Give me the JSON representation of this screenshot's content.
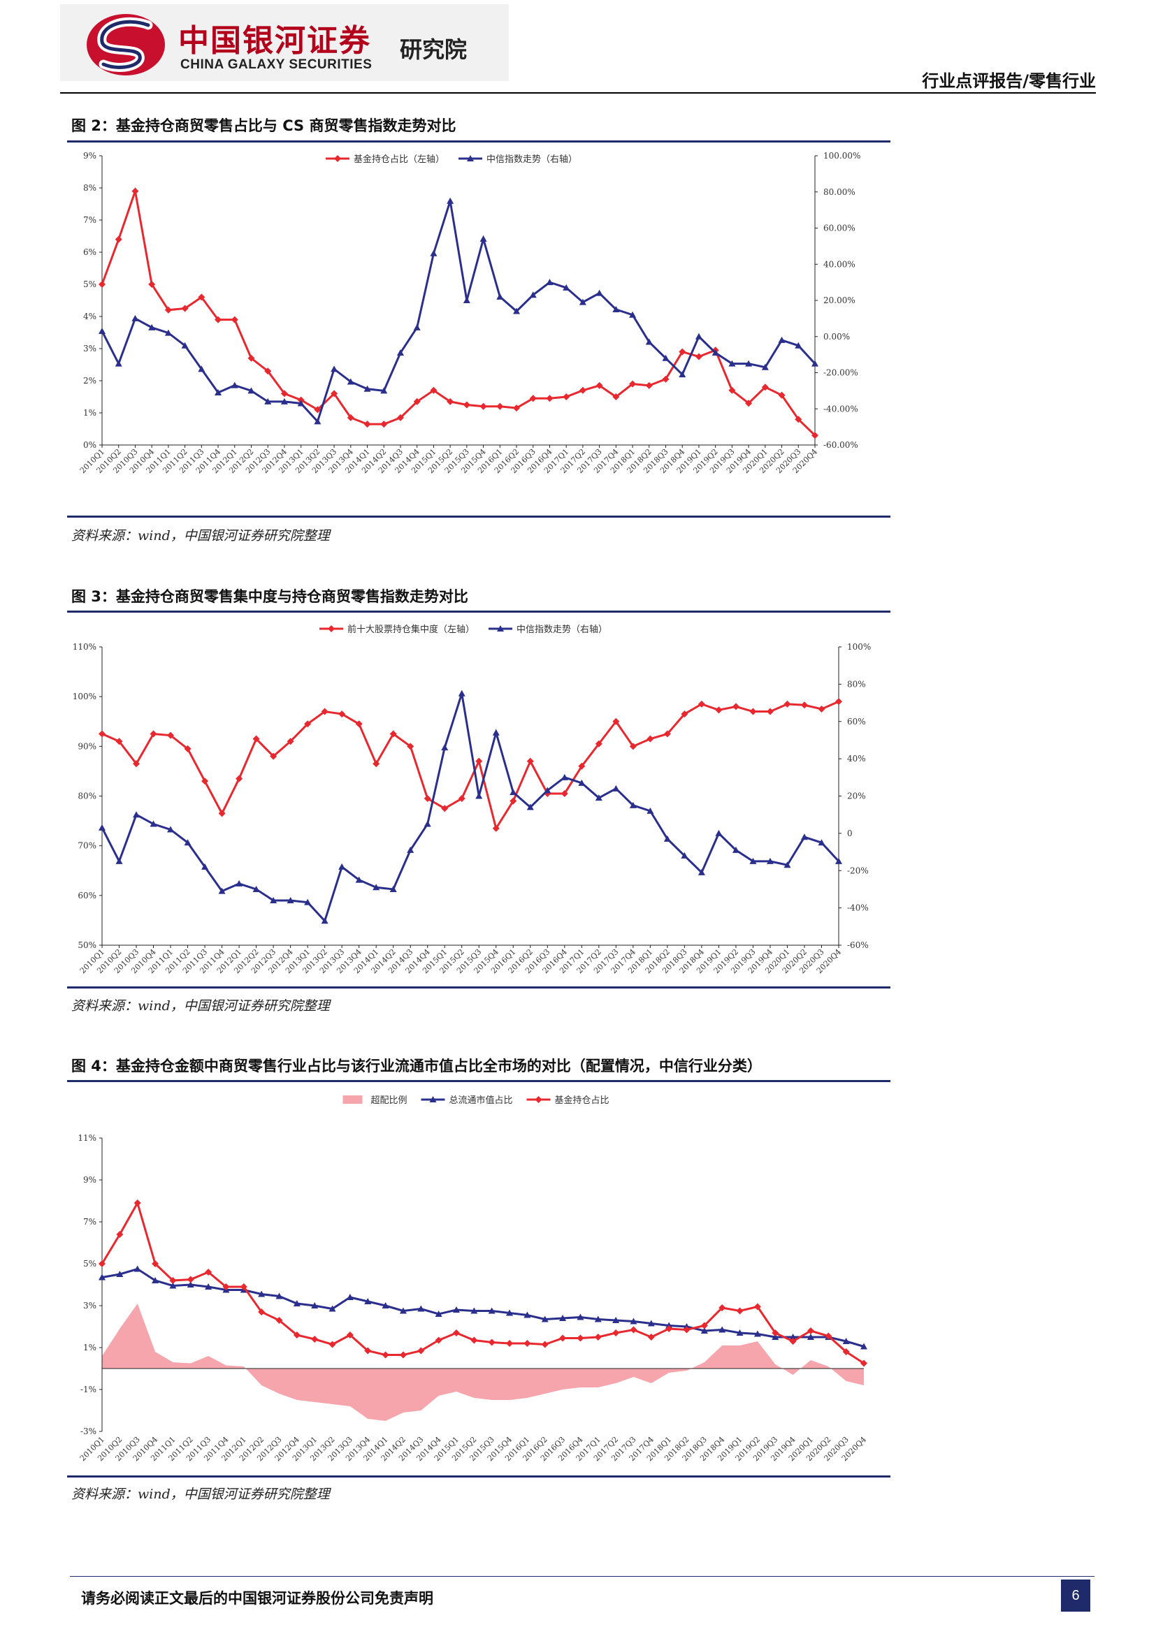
{
  "header": {
    "logo_cn": "中国银河证券",
    "logo_en": "CHINA GALAXY SECURITIES",
    "logo_institute": "研究院",
    "report_type": "行业点评报告/零售行业"
  },
  "figures": [
    {
      "title": "图 2：基金持仓商贸零售占比与 CS 商贸零售指数走势对比",
      "source": "资料来源：wind，中国银河证券研究院整理"
    },
    {
      "title": "图 3：基金持仓商贸零售集中度与持仓商贸零售指数走势对比",
      "source": "资料来源：wind，中国银河证券研究院整理"
    },
    {
      "title": "图 4：基金持仓金额中商贸零售行业占比与该行业流通市值占比全市场的对比（配置情况，中信行业分类）",
      "source": "资料来源：wind，中国银河证券研究院整理"
    }
  ],
  "footer": {
    "disclaimer": "请务必阅读正文最后的中国银河证券股份公司免责声明",
    "page": "6"
  },
  "colors": {
    "red": "#e8282e",
    "blue": "#2a2e8c",
    "pink": "#f7a5ad",
    "rule": "#1f2a6b"
  },
  "chart_data": [
    {
      "type": "line",
      "categories": [
        "2010Q1",
        "2010Q2",
        "2010Q3",
        "2010Q4",
        "2011Q1",
        "2011Q2",
        "2011Q3",
        "2011Q4",
        "2012Q1",
        "2012Q2",
        "2012Q3",
        "2012Q4",
        "2013Q1",
        "2013Q2",
        "2013Q3",
        "2013Q4",
        "2014Q1",
        "2014Q2",
        "2014Q3",
        "2014Q4",
        "2015Q1",
        "2015Q2",
        "2015Q3",
        "2015Q4",
        "2016Q1",
        "2016Q2",
        "2016Q3",
        "2016Q4",
        "2017Q1",
        "2017Q2",
        "2017Q3",
        "2017Q4",
        "2018Q1",
        "2018Q2",
        "2018Q3",
        "2018Q4",
        "2019Q1",
        "2019Q2",
        "2019Q3",
        "2019Q4",
        "2020Q1",
        "2020Q2",
        "2020Q3",
        "2020Q4"
      ],
      "tick_labels": [
        "2010Q1",
        "2010Q2",
        "2010Q3",
        "2010Q4",
        "2011Q1",
        "2011Q2",
        "2011Q3",
        "2011Q4",
        "2012Q1",
        "2012Q2",
        "2012Q3",
        "2012Q4",
        "2013Q1",
        "2013Q2",
        "2013Q3",
        "2013Q4",
        "2014Q1",
        "2014Q2",
        "2014Q3",
        "2014Q4",
        "2015Q1",
        "2015Q2",
        "2015Q3",
        "2015Q4",
        "2016Q1",
        "2016Q2",
        "2016Q3",
        "2016Q4",
        "2017Q1",
        "2017Q2",
        "2017Q3",
        "2017Q4",
        "2018Q1",
        "2018Q2",
        "2018Q3",
        "2018Q4",
        "2019Q1",
        "2019Q2",
        "2019Q3",
        "2019Q4",
        "2020Q1",
        "2020Q2",
        "2020Q3",
        "2020Q4"
      ],
      "left_axis": {
        "range": [
          0,
          9
        ],
        "ticks": [
          "0%",
          "1%",
          "2%",
          "3%",
          "4%",
          "5%",
          "6%",
          "7%",
          "8%",
          "9%"
        ]
      },
      "right_axis": {
        "range": [
          -60,
          100
        ],
        "ticks": [
          "-60.00%",
          "-40.00%",
          "-20.00%",
          "0.00%",
          "20.00%",
          "40.00%",
          "60.00%",
          "80.00%",
          "100.00%"
        ]
      },
      "series": [
        {
          "name": "基金持仓占比（左轴）",
          "axis": "left",
          "color": "#e8282e",
          "marker": "diamond",
          "values": [
            5.0,
            6.4,
            7.9,
            5.0,
            4.2,
            4.25,
            4.6,
            3.9,
            3.9,
            2.7,
            2.3,
            1.6,
            1.4,
            1.1,
            1.6,
            0.85,
            0.65,
            0.65,
            0.85,
            1.35,
            1.7,
            1.35,
            1.25,
            1.2,
            1.2,
            1.15,
            1.45,
            1.45,
            1.5,
            1.7,
            1.85,
            1.5,
            1.9,
            1.85,
            2.05,
            2.9,
            2.75,
            2.95,
            1.7,
            1.3,
            1.8,
            1.55,
            0.8,
            0.3
          ]
        },
        {
          "name": "中信指数走势（右轴）",
          "axis": "right",
          "color": "#2a2e8c",
          "marker": "triangle",
          "values": [
            3,
            -15,
            10,
            5,
            2,
            -5,
            -18,
            -31,
            -27,
            -30,
            -36,
            -36,
            -37,
            -47,
            -18,
            -25,
            -29,
            -30,
            -9,
            5,
            46,
            75,
            20,
            54,
            22,
            14,
            23,
            30,
            27,
            19,
            24,
            15,
            12,
            -3,
            -12,
            -21,
            0,
            -9,
            -15,
            -15,
            -17,
            -2,
            -5,
            -15
          ]
        }
      ],
      "grid": false,
      "legend": "top-center"
    },
    {
      "type": "line",
      "categories": [
        "2010Q1",
        "2010Q2",
        "2010Q3",
        "2010Q4",
        "2011Q1",
        "2011Q2",
        "2011Q3",
        "2011Q4",
        "2012Q1",
        "2012Q2",
        "2012Q3",
        "2012Q4",
        "2013Q1",
        "2013Q2",
        "2013Q3",
        "2013Q4",
        "2014Q1",
        "2014Q2",
        "2014Q3",
        "2014Q4",
        "2015Q1",
        "2015Q2",
        "2015Q3",
        "2015Q4",
        "2016Q1",
        "2016Q2",
        "2016Q3",
        "2016Q4",
        "2017Q1",
        "2017Q2",
        "2017Q3",
        "2017Q4",
        "2018Q1",
        "2018Q2",
        "2018Q3",
        "2018Q4",
        "2019Q1",
        "2019Q2",
        "2019Q3",
        "2019Q4",
        "2020Q1",
        "2020Q2",
        "2020Q3",
        "2020Q4"
      ],
      "tick_labels": [
        "2010Q1",
        "2010Q2",
        "2010Q3",
        "2010Q4",
        "2011Q1",
        "2011Q2",
        "2011Q3",
        "2011Q4",
        "2012Q1",
        "2012Q2",
        "2012Q3",
        "2012Q4",
        "2013Q1",
        "2013Q2",
        "2013Q3",
        "2013Q4",
        "2014Q1",
        "2014Q2",
        "2014Q3",
        "2014Q4",
        "2015Q1",
        "2015Q2",
        "2015Q3",
        "2015Q4",
        "2016Q1",
        "2016Q2",
        "2016Q3",
        "2016Q4",
        "2017Q1",
        "2017Q2",
        "2017Q3",
        "2017Q4",
        "2018Q1",
        "2018Q2",
        "2018Q3",
        "2018Q4",
        "2019Q1",
        "2019Q2",
        "2019Q3",
        "2019Q4",
        "2020Q1",
        "2020Q2",
        "2020Q3",
        "2020Q4"
      ],
      "left_axis": {
        "range": [
          50,
          110
        ],
        "ticks": [
          "50%",
          "60%",
          "70%",
          "80%",
          "90%",
          "100%",
          "110%"
        ]
      },
      "right_axis": {
        "range": [
          -60,
          100
        ],
        "ticks": [
          "-60%",
          "-40%",
          "-20%",
          "0",
          "20%",
          "40%",
          "60%",
          "80%",
          "100%"
        ]
      },
      "series": [
        {
          "name": "前十大股票持仓集中度（左轴）",
          "axis": "left",
          "color": "#e8282e",
          "marker": "diamond",
          "values": [
            92.5,
            91,
            86.5,
            92.5,
            92.2,
            89.5,
            83,
            76.5,
            83.5,
            91.5,
            88,
            91,
            94.5,
            97,
            96.5,
            94.5,
            86.5,
            92.5,
            90,
            79.5,
            77.5,
            79.5,
            87,
            73.5,
            79,
            87,
            80.5,
            80.5,
            86,
            90.5,
            95,
            90,
            91.5,
            92.5,
            96.5,
            98.5,
            97.3,
            98,
            97,
            97,
            98.5,
            98.3,
            97.5,
            99
          ]
        },
        {
          "name": "中信指数走势（右轴）",
          "axis": "right",
          "color": "#2a2e8c",
          "marker": "triangle",
          "values": [
            3,
            -15,
            10,
            5,
            2,
            -5,
            -18,
            -31,
            -27,
            -30,
            -36,
            -36,
            -37,
            -47,
            -18,
            -25,
            -29,
            -30,
            -9,
            5,
            46,
            75,
            20,
            54,
            22,
            14,
            23,
            30,
            27,
            19,
            24,
            15,
            12,
            -3,
            -12,
            -21,
            0,
            -9,
            -15,
            -15,
            -17,
            -2,
            -5,
            -15
          ]
        }
      ],
      "grid": false,
      "legend": "top-center"
    },
    {
      "type": "line",
      "categories": [
        "2010Q1",
        "2010Q2",
        "2010Q3",
        "2010Q4",
        "2011Q1",
        "2011Q2",
        "2011Q3",
        "2011Q4",
        "2012Q1",
        "2012Q2",
        "2012Q3",
        "2012Q4",
        "2013Q1",
        "2013Q2",
        "2013Q3",
        "2013Q4",
        "2014Q1",
        "2014Q2",
        "2014Q3",
        "2014Q4",
        "2015Q1",
        "2015Q2",
        "2015Q3",
        "2015Q4",
        "2016Q1",
        "2016Q2",
        "2016Q3",
        "2016Q4",
        "2017Q1",
        "2017Q2",
        "2017Q3",
        "2017Q4",
        "2018Q1",
        "2018Q2",
        "2018Q3",
        "2018Q4",
        "2019Q1",
        "2019Q2",
        "2019Q3",
        "2019Q4",
        "2020Q1",
        "2020Q2",
        "2020Q3",
        "2020Q4"
      ],
      "tick_labels": [
        "2010Q1",
        "2010Q2",
        "2010Q3",
        "2010Q4",
        "2011Q1",
        "2011Q2",
        "2011Q3",
        "2011Q4",
        "2012Q1",
        "2012Q2",
        "2012Q3",
        "2012Q4",
        "2013Q1",
        "2013Q2",
        "2013Q3",
        "2013Q4",
        "2014Q1",
        "2014Q2",
        "2014Q3",
        "2014Q4",
        "2015Q1",
        "2015Q2",
        "2015Q3",
        "2015Q4",
        "2016Q1",
        "2016Q2",
        "2016Q3",
        "2016Q4",
        "2017Q1",
        "2017Q2",
        "2017Q3",
        "2017Q4",
        "2018Q1",
        "2018Q2",
        "2018Q3",
        "2018Q4",
        "2019Q1",
        "2019Q2",
        "2019Q3",
        "2019Q4",
        "2020Q1",
        "2020Q2",
        "2020Q3",
        "2020Q4"
      ],
      "left_axis": {
        "range": [
          -3,
          11
        ],
        "ticks": [
          "-3%",
          "-1%",
          "1%",
          "3%",
          "5%",
          "7%",
          "9%",
          "11%"
        ]
      },
      "series": [
        {
          "name": "超配比例",
          "kind": "area",
          "color": "#f7a5ad",
          "values": [
            0.6,
            1.9,
            3.1,
            0.8,
            0.3,
            0.25,
            0.6,
            0.15,
            0.1,
            -0.8,
            -1.2,
            -1.5,
            -1.6,
            -1.7,
            -1.8,
            -2.4,
            -2.5,
            -2.1,
            -2.0,
            -1.3,
            -1.1,
            -1.4,
            -1.5,
            -1.5,
            -1.4,
            -1.2,
            -1.0,
            -0.9,
            -0.9,
            -0.7,
            -0.4,
            -0.7,
            -0.2,
            -0.1,
            0.3,
            1.1,
            1.1,
            1.3,
            0.2,
            -0.3,
            0.4,
            0.1,
            -0.6,
            -0.8
          ]
        },
        {
          "name": "总流通市值占比",
          "kind": "line",
          "color": "#2a2e8c",
          "marker": "triangle",
          "values": [
            4.35,
            4.5,
            4.75,
            4.2,
            3.95,
            4.0,
            3.9,
            3.75,
            3.75,
            3.55,
            3.45,
            3.1,
            3.0,
            2.85,
            3.4,
            3.2,
            3.0,
            2.75,
            2.85,
            2.6,
            2.8,
            2.75,
            2.75,
            2.65,
            2.55,
            2.35,
            2.4,
            2.45,
            2.35,
            2.3,
            2.25,
            2.15,
            2.05,
            2.0,
            1.8,
            1.85,
            1.7,
            1.65,
            1.5,
            1.5,
            1.5,
            1.5,
            1.3,
            1.05
          ]
        },
        {
          "name": "基金持仓占比",
          "kind": "line",
          "color": "#e8282e",
          "marker": "diamond",
          "values": [
            5.0,
            6.4,
            7.9,
            5.0,
            4.2,
            4.25,
            4.6,
            3.9,
            3.9,
            2.7,
            2.3,
            1.6,
            1.4,
            1.15,
            1.6,
            0.85,
            0.65,
            0.65,
            0.85,
            1.35,
            1.7,
            1.35,
            1.25,
            1.2,
            1.2,
            1.15,
            1.45,
            1.45,
            1.5,
            1.7,
            1.85,
            1.5,
            1.9,
            1.85,
            2.05,
            2.9,
            2.75,
            2.95,
            1.7,
            1.3,
            1.8,
            1.55,
            0.8,
            0.25
          ]
        }
      ],
      "grid": false,
      "legend": "top-center"
    }
  ]
}
